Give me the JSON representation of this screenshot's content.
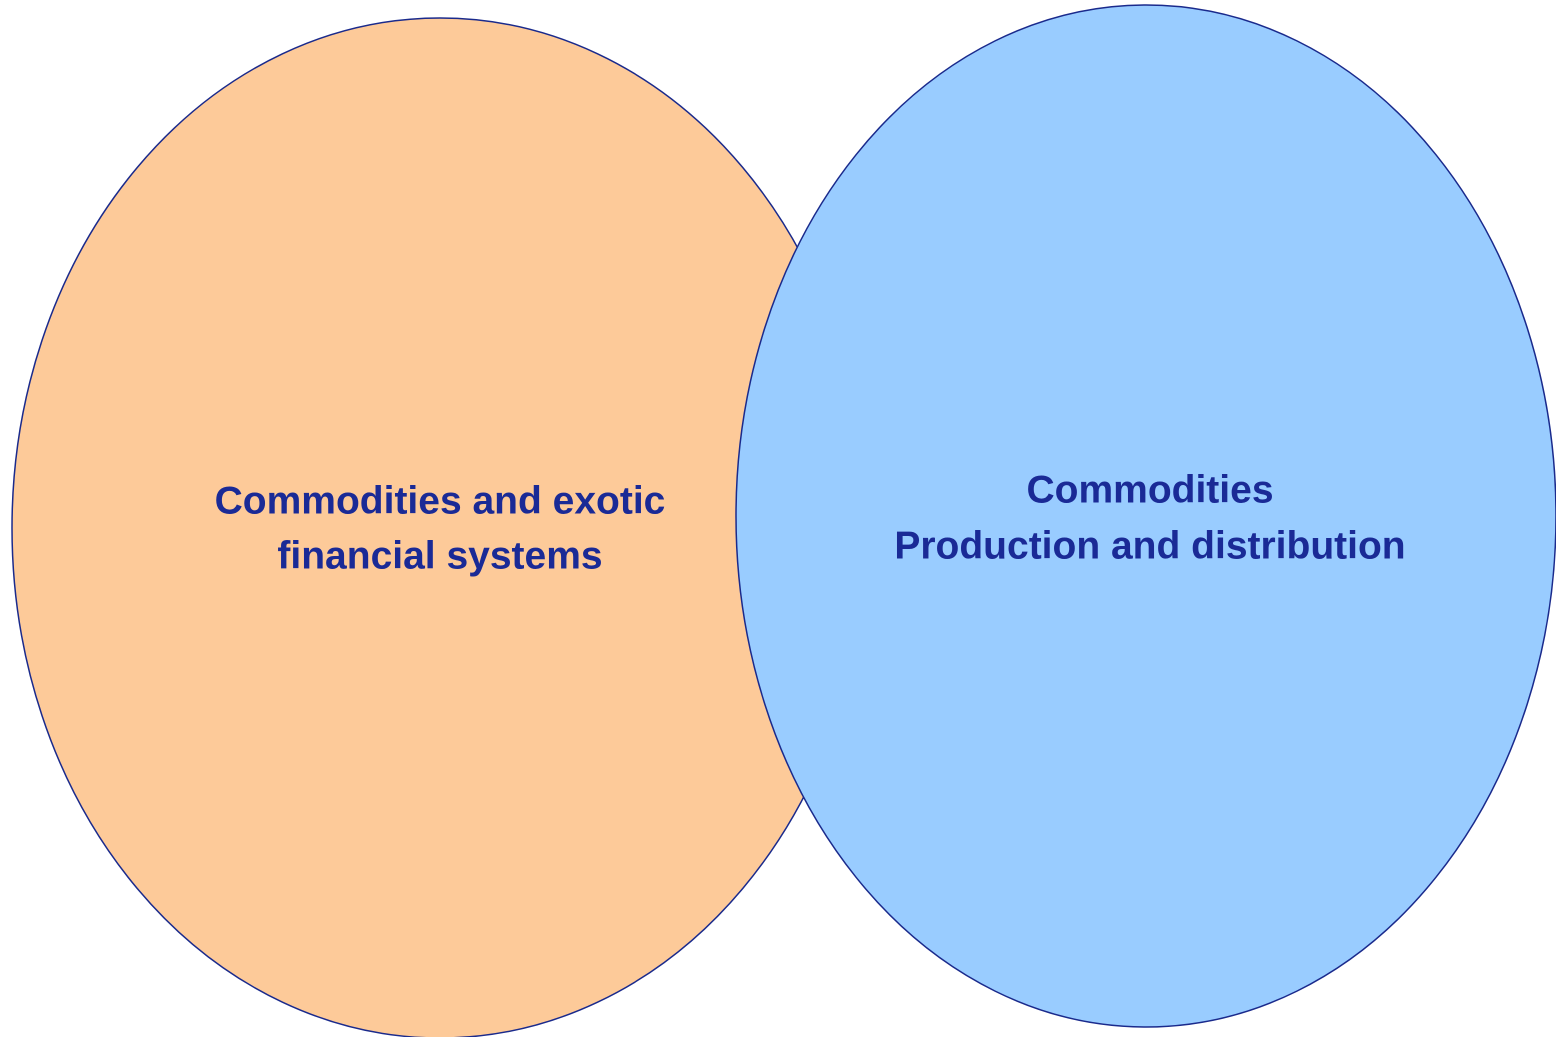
{
  "nodes": [
    {
      "lines": [
        "Commodities and exotic",
        "financial systems"
      ]
    },
    {
      "lines": [
        "Commodities",
        "Production and distribution"
      ]
    }
  ]
}
